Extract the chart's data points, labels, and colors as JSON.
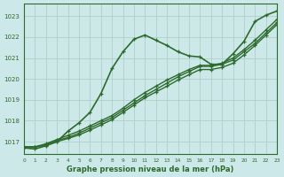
{
  "title": "Graphe pression niveau de la mer (hPa)",
  "background_color": "#cce8e8",
  "grid_color": "#b0d0c8",
  "line_color": "#2d6a2d",
  "xlim": [
    0,
    23
  ],
  "ylim": [
    1016.4,
    1023.6
  ],
  "yticks": [
    1017,
    1018,
    1019,
    1020,
    1021,
    1022,
    1023
  ],
  "xticks": [
    0,
    1,
    2,
    3,
    4,
    5,
    6,
    7,
    8,
    9,
    10,
    11,
    12,
    13,
    14,
    15,
    16,
    17,
    18,
    19,
    20,
    21,
    22,
    23
  ],
  "series": [
    {
      "x": [
        0,
        1,
        2,
        3,
        4,
        5,
        6,
        7,
        8,
        9,
        10,
        11,
        12,
        13,
        14,
        15,
        16,
        17,
        18,
        19,
        20,
        21,
        22,
        23
      ],
      "y": [
        1016.7,
        1016.65,
        1016.8,
        1017.0,
        1017.5,
        1017.9,
        1018.4,
        1019.3,
        1020.5,
        1021.3,
        1021.9,
        1022.1,
        1021.85,
        1021.6,
        1021.3,
        1021.1,
        1021.05,
        1020.7,
        1020.7,
        1021.2,
        1021.8,
        1022.75,
        1023.05,
        1023.25
      ],
      "linewidth": 1.2,
      "marker": "+"
    },
    {
      "x": [
        0,
        1,
        2,
        3,
        4,
        5,
        6,
        7,
        8,
        9,
        10,
        11,
        12,
        13,
        14,
        15,
        16,
        17,
        18,
        19,
        20,
        21,
        22,
        23
      ],
      "y": [
        1016.75,
        1016.75,
        1016.85,
        1017.05,
        1017.2,
        1017.4,
        1017.65,
        1017.9,
        1018.15,
        1018.5,
        1018.85,
        1019.2,
        1019.5,
        1019.8,
        1020.1,
        1020.35,
        1020.6,
        1020.6,
        1020.7,
        1020.9,
        1021.3,
        1021.7,
        1022.2,
        1022.7
      ],
      "linewidth": 1.0,
      "marker": "+"
    },
    {
      "x": [
        0,
        1,
        2,
        3,
        4,
        5,
        6,
        7,
        8,
        9,
        10,
        11,
        12,
        13,
        14,
        15,
        16,
        17,
        18,
        19,
        20,
        21,
        22,
        23
      ],
      "y": [
        1016.75,
        1016.75,
        1016.9,
        1017.1,
        1017.3,
        1017.5,
        1017.75,
        1018.0,
        1018.25,
        1018.6,
        1019.0,
        1019.35,
        1019.65,
        1019.95,
        1020.2,
        1020.45,
        1020.65,
        1020.65,
        1020.75,
        1021.0,
        1021.4,
        1021.85,
        1022.35,
        1022.85
      ],
      "linewidth": 1.0,
      "marker": "+"
    },
    {
      "x": [
        0,
        1,
        2,
        3,
        4,
        5,
        6,
        7,
        8,
        9,
        10,
        11,
        12,
        13,
        14,
        15,
        16,
        17,
        18,
        19,
        20,
        21,
        22,
        23
      ],
      "y": [
        1016.75,
        1016.75,
        1016.82,
        1017.0,
        1017.15,
        1017.32,
        1017.55,
        1017.8,
        1018.05,
        1018.4,
        1018.75,
        1019.1,
        1019.38,
        1019.65,
        1019.95,
        1020.2,
        1020.45,
        1020.45,
        1020.55,
        1020.75,
        1021.15,
        1021.6,
        1022.1,
        1022.6
      ],
      "linewidth": 1.0,
      "marker": "+"
    }
  ]
}
